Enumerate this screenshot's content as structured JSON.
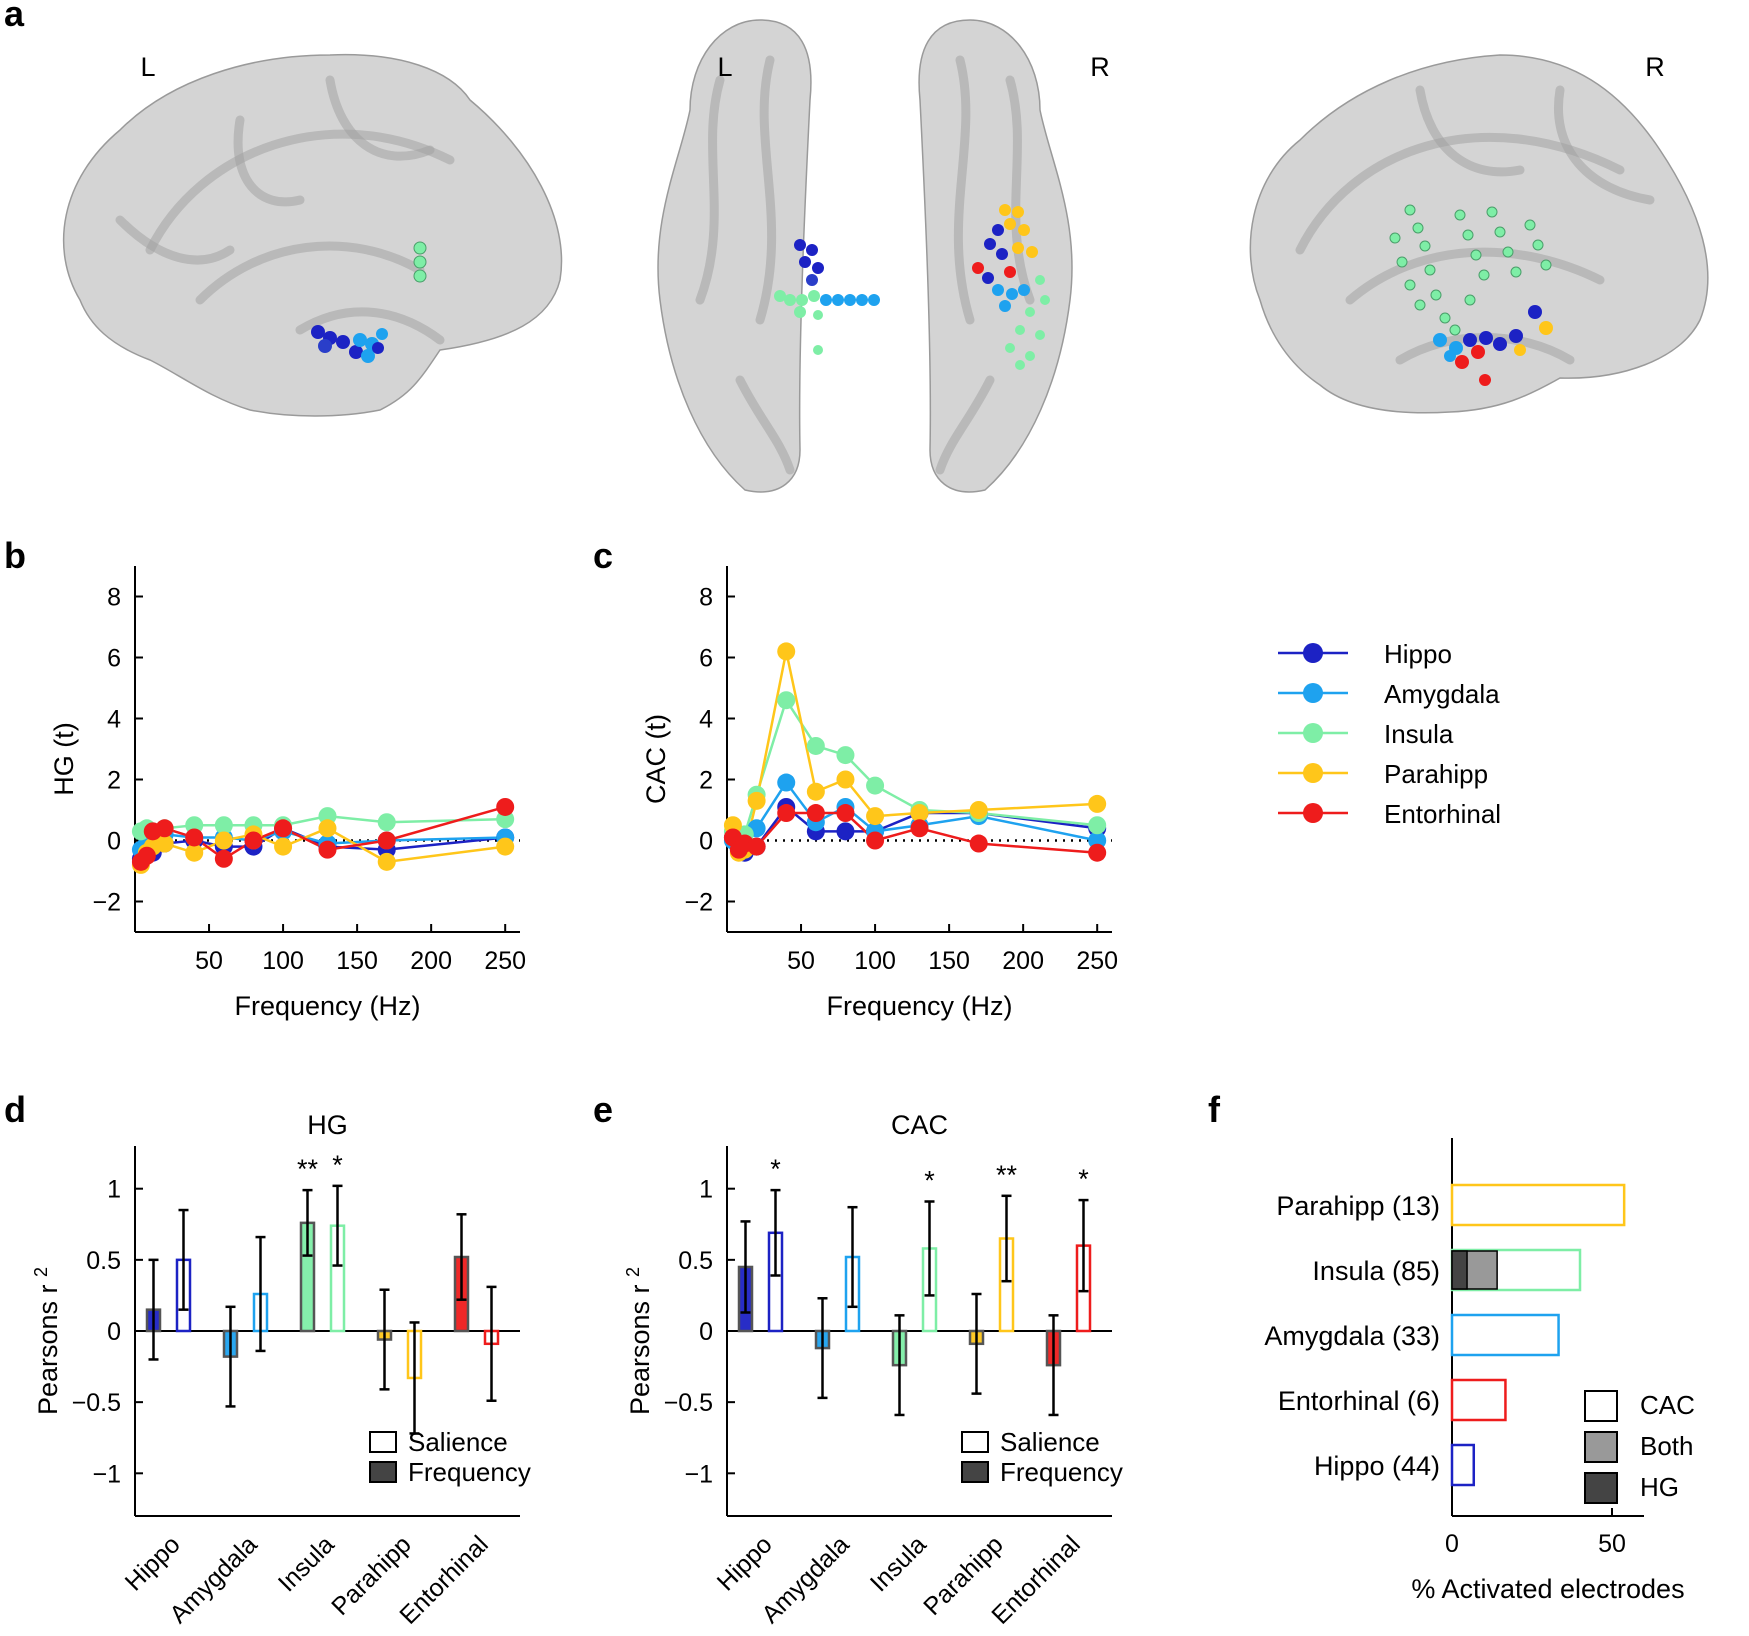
{
  "colors": {
    "Hippo": "#1c22c4",
    "Amygdala": "#1ea2ef",
    "Insula": "#7eeea6",
    "Parahipp": "#ffc61a",
    "Entorhinal": "#ee1c1c",
    "salience_fill": "#ffffff",
    "hg_dark": "#444444",
    "both_gray": "#999999"
  },
  "panels": {
    "a": {
      "letter": "a",
      "hemisphere_labels": [
        "L",
        "L",
        "R",
        "R"
      ]
    },
    "b": {
      "letter": "b"
    },
    "c": {
      "letter": "c"
    },
    "d": {
      "letter": "d"
    },
    "e": {
      "letter": "e"
    },
    "f": {
      "letter": "f"
    }
  },
  "legend": {
    "regions": [
      "Hippo",
      "Amygdala",
      "Insula",
      "Parahipp",
      "Entorhinal"
    ],
    "bar_legend": [
      "Salience",
      "Frequency"
    ],
    "f_legend": [
      "CAC",
      "Both",
      "HG"
    ]
  },
  "chart_data": [
    {
      "id": "b",
      "type": "line",
      "title": "",
      "xlabel": "Frequency (Hz)",
      "ylabel": "HG (t)",
      "xlim": [
        0,
        260
      ],
      "ylim": [
        -3,
        9
      ],
      "xticks": [
        50,
        100,
        150,
        200,
        250
      ],
      "yticks": [
        -2,
        0,
        2,
        4,
        6,
        8
      ],
      "ytick_labels": [
        "−2",
        "0",
        "2",
        "4",
        "6",
        "8"
      ],
      "zero_line": "dotted",
      "x": [
        4,
        8,
        12,
        20,
        40,
        60,
        80,
        100,
        130,
        170,
        250
      ],
      "series": [
        {
          "name": "Hippo",
          "values": [
            -0.6,
            -0.3,
            -0.4,
            -0.1,
            0.0,
            -0.2,
            -0.2,
            0.4,
            -0.2,
            -0.3,
            0.1
          ]
        },
        {
          "name": "Amygdala",
          "values": [
            -0.3,
            -0.1,
            0.0,
            0.2,
            0.1,
            0.1,
            0.0,
            0.3,
            -0.1,
            0.0,
            0.1
          ]
        },
        {
          "name": "Insula",
          "values": [
            0.3,
            0.4,
            0.3,
            0.4,
            0.5,
            0.5,
            0.5,
            0.5,
            0.8,
            0.6,
            0.7
          ]
        },
        {
          "name": "Parahipp",
          "values": [
            -0.8,
            -0.4,
            -0.2,
            -0.1,
            -0.4,
            0.0,
            0.2,
            -0.2,
            0.4,
            -0.7,
            -0.2
          ]
        },
        {
          "name": "Entorhinal",
          "values": [
            -0.7,
            -0.5,
            0.3,
            0.4,
            0.1,
            -0.6,
            0.0,
            0.4,
            -0.3,
            0.0,
            1.1
          ]
        }
      ]
    },
    {
      "id": "c",
      "type": "line",
      "title": "",
      "xlabel": "Frequency (Hz)",
      "ylabel": "CAC (t)",
      "xlim": [
        0,
        260
      ],
      "ylim": [
        -3,
        9
      ],
      "xticks": [
        50,
        100,
        150,
        200,
        250
      ],
      "yticks": [
        -2,
        0,
        2,
        4,
        6,
        8
      ],
      "ytick_labels": [
        "−2",
        "0",
        "2",
        "4",
        "6",
        "8"
      ],
      "zero_line": "dotted",
      "x": [
        4,
        8,
        12,
        20,
        40,
        60,
        80,
        100,
        130,
        170,
        250
      ],
      "series": [
        {
          "name": "Hippo",
          "values": [
            0.1,
            -0.2,
            -0.4,
            -0.2,
            1.1,
            0.3,
            0.3,
            0.3,
            0.9,
            0.9,
            0.4
          ]
        },
        {
          "name": "Amygdala",
          "values": [
            0.0,
            -0.3,
            -0.3,
            0.4,
            1.9,
            0.6,
            1.1,
            0.3,
            0.5,
            0.8,
            0.0
          ]
        },
        {
          "name": "Insula",
          "values": [
            0.3,
            0.0,
            0.2,
            1.5,
            4.6,
            3.1,
            2.8,
            1.8,
            1.0,
            0.9,
            0.5
          ]
        },
        {
          "name": "Parahipp",
          "values": [
            0.5,
            -0.4,
            -0.3,
            1.3,
            6.2,
            1.6,
            2.0,
            0.8,
            0.9,
            1.0,
            1.2
          ]
        },
        {
          "name": "Entorhinal",
          "values": [
            0.1,
            -0.3,
            -0.1,
            -0.2,
            0.9,
            0.9,
            0.9,
            0.0,
            0.4,
            -0.1,
            -0.4
          ]
        }
      ]
    },
    {
      "id": "d",
      "type": "bar",
      "title": "HG",
      "ylabel": "Pearsons r",
      "ylabel_sup": "2",
      "ylim": [
        -1.3,
        1.3
      ],
      "yticks": [
        -1,
        -0.5,
        0,
        0.5,
        1
      ],
      "ytick_labels": [
        "−1",
        "−0.5",
        "0",
        "0.5",
        "1"
      ],
      "categories": [
        "Hippo",
        "Amygdala",
        "Insula",
        "Parahipp",
        "Entorhinal"
      ],
      "series": [
        {
          "name": "Frequency",
          "values": [
            0.15,
            -0.18,
            0.76,
            -0.06,
            0.52
          ],
          "err": [
            0.35,
            0.35,
            0.23,
            0.35,
            0.3
          ]
        },
        {
          "name": "Salience",
          "values": [
            0.5,
            0.26,
            0.74,
            -0.33,
            -0.09
          ],
          "err": [
            0.35,
            0.4,
            0.28,
            0.39,
            0.4
          ]
        }
      ],
      "stars": [
        {
          "category": "Insula",
          "series": "Frequency",
          "text": "**"
        },
        {
          "category": "Insula",
          "series": "Salience",
          "text": "*"
        }
      ]
    },
    {
      "id": "e",
      "type": "bar",
      "title": "CAC",
      "ylabel": "Pearsons r",
      "ylabel_sup": "2",
      "ylim": [
        -1.3,
        1.3
      ],
      "yticks": [
        -1,
        -0.5,
        0,
        0.5,
        1
      ],
      "ytick_labels": [
        "−1",
        "−0.5",
        "0",
        "0.5",
        "1"
      ],
      "categories": [
        "Hippo",
        "Amygdala",
        "Insula",
        "Parahipp",
        "Entorhinal"
      ],
      "series": [
        {
          "name": "Frequency",
          "values": [
            0.45,
            -0.12,
            -0.24,
            -0.09,
            -0.24
          ],
          "err": [
            0.32,
            0.35,
            0.35,
            0.35,
            0.35
          ]
        },
        {
          "name": "Salience",
          "values": [
            0.69,
            0.52,
            0.58,
            0.65,
            0.6
          ],
          "err": [
            0.3,
            0.35,
            0.33,
            0.3,
            0.32
          ]
        }
      ],
      "stars": [
        {
          "category": "Hippo",
          "series": "Salience",
          "text": "*"
        },
        {
          "category": "Insula",
          "series": "Salience",
          "text": "*"
        },
        {
          "category": "Parahipp",
          "series": "Salience",
          "text": "**"
        },
        {
          "category": "Entorhinal",
          "series": "Salience",
          "text": "*"
        }
      ]
    },
    {
      "id": "f",
      "type": "bar",
      "orientation": "horizontal",
      "xlabel": "% Activated electrodes",
      "xlim": [
        0,
        60
      ],
      "xticks": [
        0,
        50
      ],
      "categories": [
        "Parahipp (13)",
        "Insula (85)",
        "Amygdala (33)",
        "Entorhinal (6)",
        "Hippo (44)"
      ],
      "regions": [
        "Parahipp",
        "Insula",
        "Amygdala",
        "Entorhinal",
        "Hippo"
      ],
      "series": [
        {
          "name": "CAC",
          "values": [
            53.8,
            40.0,
            33.3,
            16.7,
            6.8
          ]
        },
        {
          "name": "Both",
          "values": [
            0,
            14.1,
            0,
            0,
            0
          ]
        },
        {
          "name": "HG",
          "values": [
            0,
            4.7,
            0,
            0,
            0
          ]
        }
      ]
    }
  ]
}
